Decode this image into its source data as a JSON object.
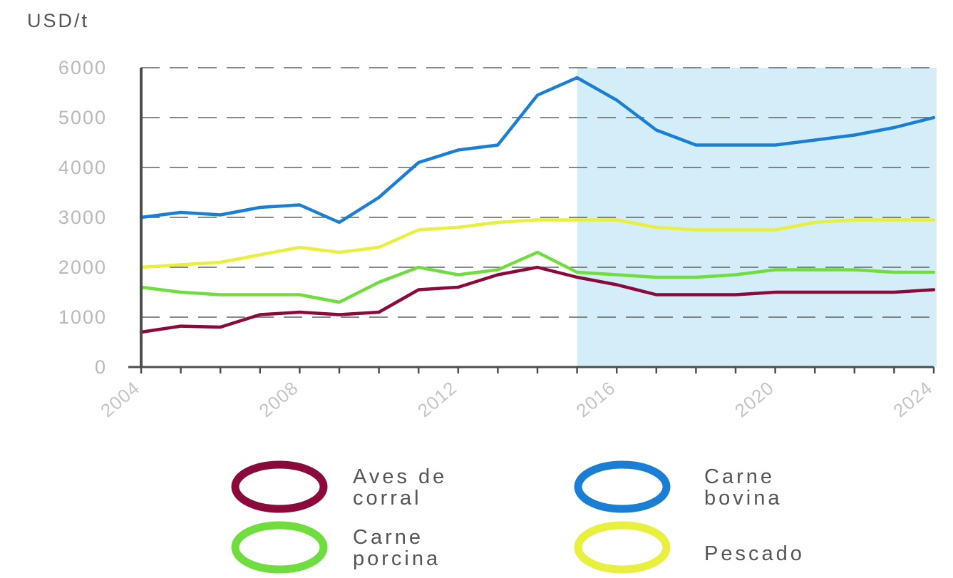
{
  "chart_data": {
    "type": "line",
    "ylabel": "USD/t",
    "ylim": [
      0,
      6000
    ],
    "yticks": [
      "0",
      "1000",
      "2000",
      "3000",
      "4000",
      "5000",
      "6000"
    ],
    "yticks_values": [
      0,
      1000,
      2000,
      3000,
      4000,
      5000,
      6000
    ],
    "xlim": [
      2004,
      2024
    ],
    "xticks": [
      "2004",
      "2008",
      "2012",
      "2016",
      "2020",
      "2024"
    ],
    "xticks_values": [
      2004,
      2008,
      2012,
      2016,
      2020,
      2024
    ],
    "grid": "dashed horizontal",
    "projection_shading": [
      2015,
      2024
    ],
    "x": [
      2004,
      2005,
      2006,
      2007,
      2008,
      2009,
      2010,
      2011,
      2012,
      2013,
      2014,
      2015,
      2016,
      2017,
      2018,
      2019,
      2020,
      2021,
      2022,
      2023,
      2024
    ],
    "series": [
      {
        "name": "Aves de corral",
        "color": "#8b0a3c",
        "values": [
          700,
          820,
          800,
          1050,
          1100,
          1050,
          1100,
          1550,
          1600,
          1850,
          2000,
          1800,
          1650,
          1450,
          1450,
          1450,
          1500,
          1500,
          1500,
          1500,
          1550
        ]
      },
      {
        "name": "Carne bovina",
        "color": "#1a7fd4",
        "values": [
          3000,
          3100,
          3050,
          3200,
          3250,
          2900,
          3400,
          4100,
          4350,
          4450,
          5450,
          5800,
          5350,
          4750,
          4450,
          4450,
          4450,
          4550,
          4650,
          4800,
          5000
        ]
      },
      {
        "name": "Carne porcina",
        "color": "#6fdd3e",
        "values": [
          1600,
          1500,
          1450,
          1450,
          1450,
          1300,
          1700,
          2000,
          1850,
          1950,
          2300,
          1900,
          1850,
          1800,
          1800,
          1850,
          1950,
          1950,
          1950,
          1900,
          1900
        ]
      },
      {
        "name": "Pescado",
        "color": "#e8ef3c",
        "values": [
          2000,
          2050,
          2100,
          2250,
          2400,
          2300,
          2400,
          2750,
          2800,
          2900,
          2950,
          2950,
          2950,
          2800,
          2750,
          2750,
          2750,
          2900,
          2950,
          2950,
          2950
        ]
      }
    ],
    "legend": [
      {
        "lines": [
          "Aves de",
          "corral"
        ],
        "color": "#8b0a3c"
      },
      {
        "lines": [
          "Carne",
          "bovina"
        ],
        "color": "#1a7fd4"
      },
      {
        "lines": [
          "Carne",
          "porcina"
        ],
        "color": "#6fdd3e"
      },
      {
        "lines": [
          "Pescado"
        ],
        "color": "#e8ef3c"
      }
    ],
    "colors": {
      "axis": "#4d4d4d",
      "grid": "#606060",
      "shade": "#d4eef9"
    }
  }
}
